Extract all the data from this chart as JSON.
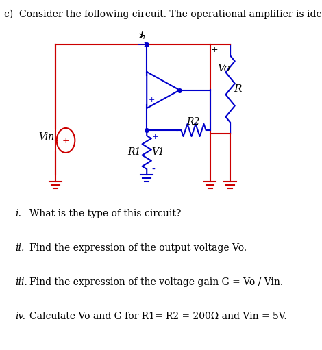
{
  "title": "c)  Consider the following circuit. The operational amplifier is ideal.",
  "title_fontsize": 11,
  "bg_color": "#ffffff",
  "red_color": "#cc0000",
  "blue_color": "#0000cc",
  "black_color": "#000000",
  "questions": [
    {
      "num": "i.",
      "text": "What is the type of this circuit?"
    },
    {
      "num": "ii.",
      "text": "Find the expression of the output voltage Vo."
    },
    {
      "num": "iii.",
      "text": "Find the expression of the voltage gain G = Vo / Vin."
    },
    {
      "num": "iv.",
      "text": "Calculate Vo and G for R1= R2 = 200Ω and Vin = 5V."
    }
  ]
}
